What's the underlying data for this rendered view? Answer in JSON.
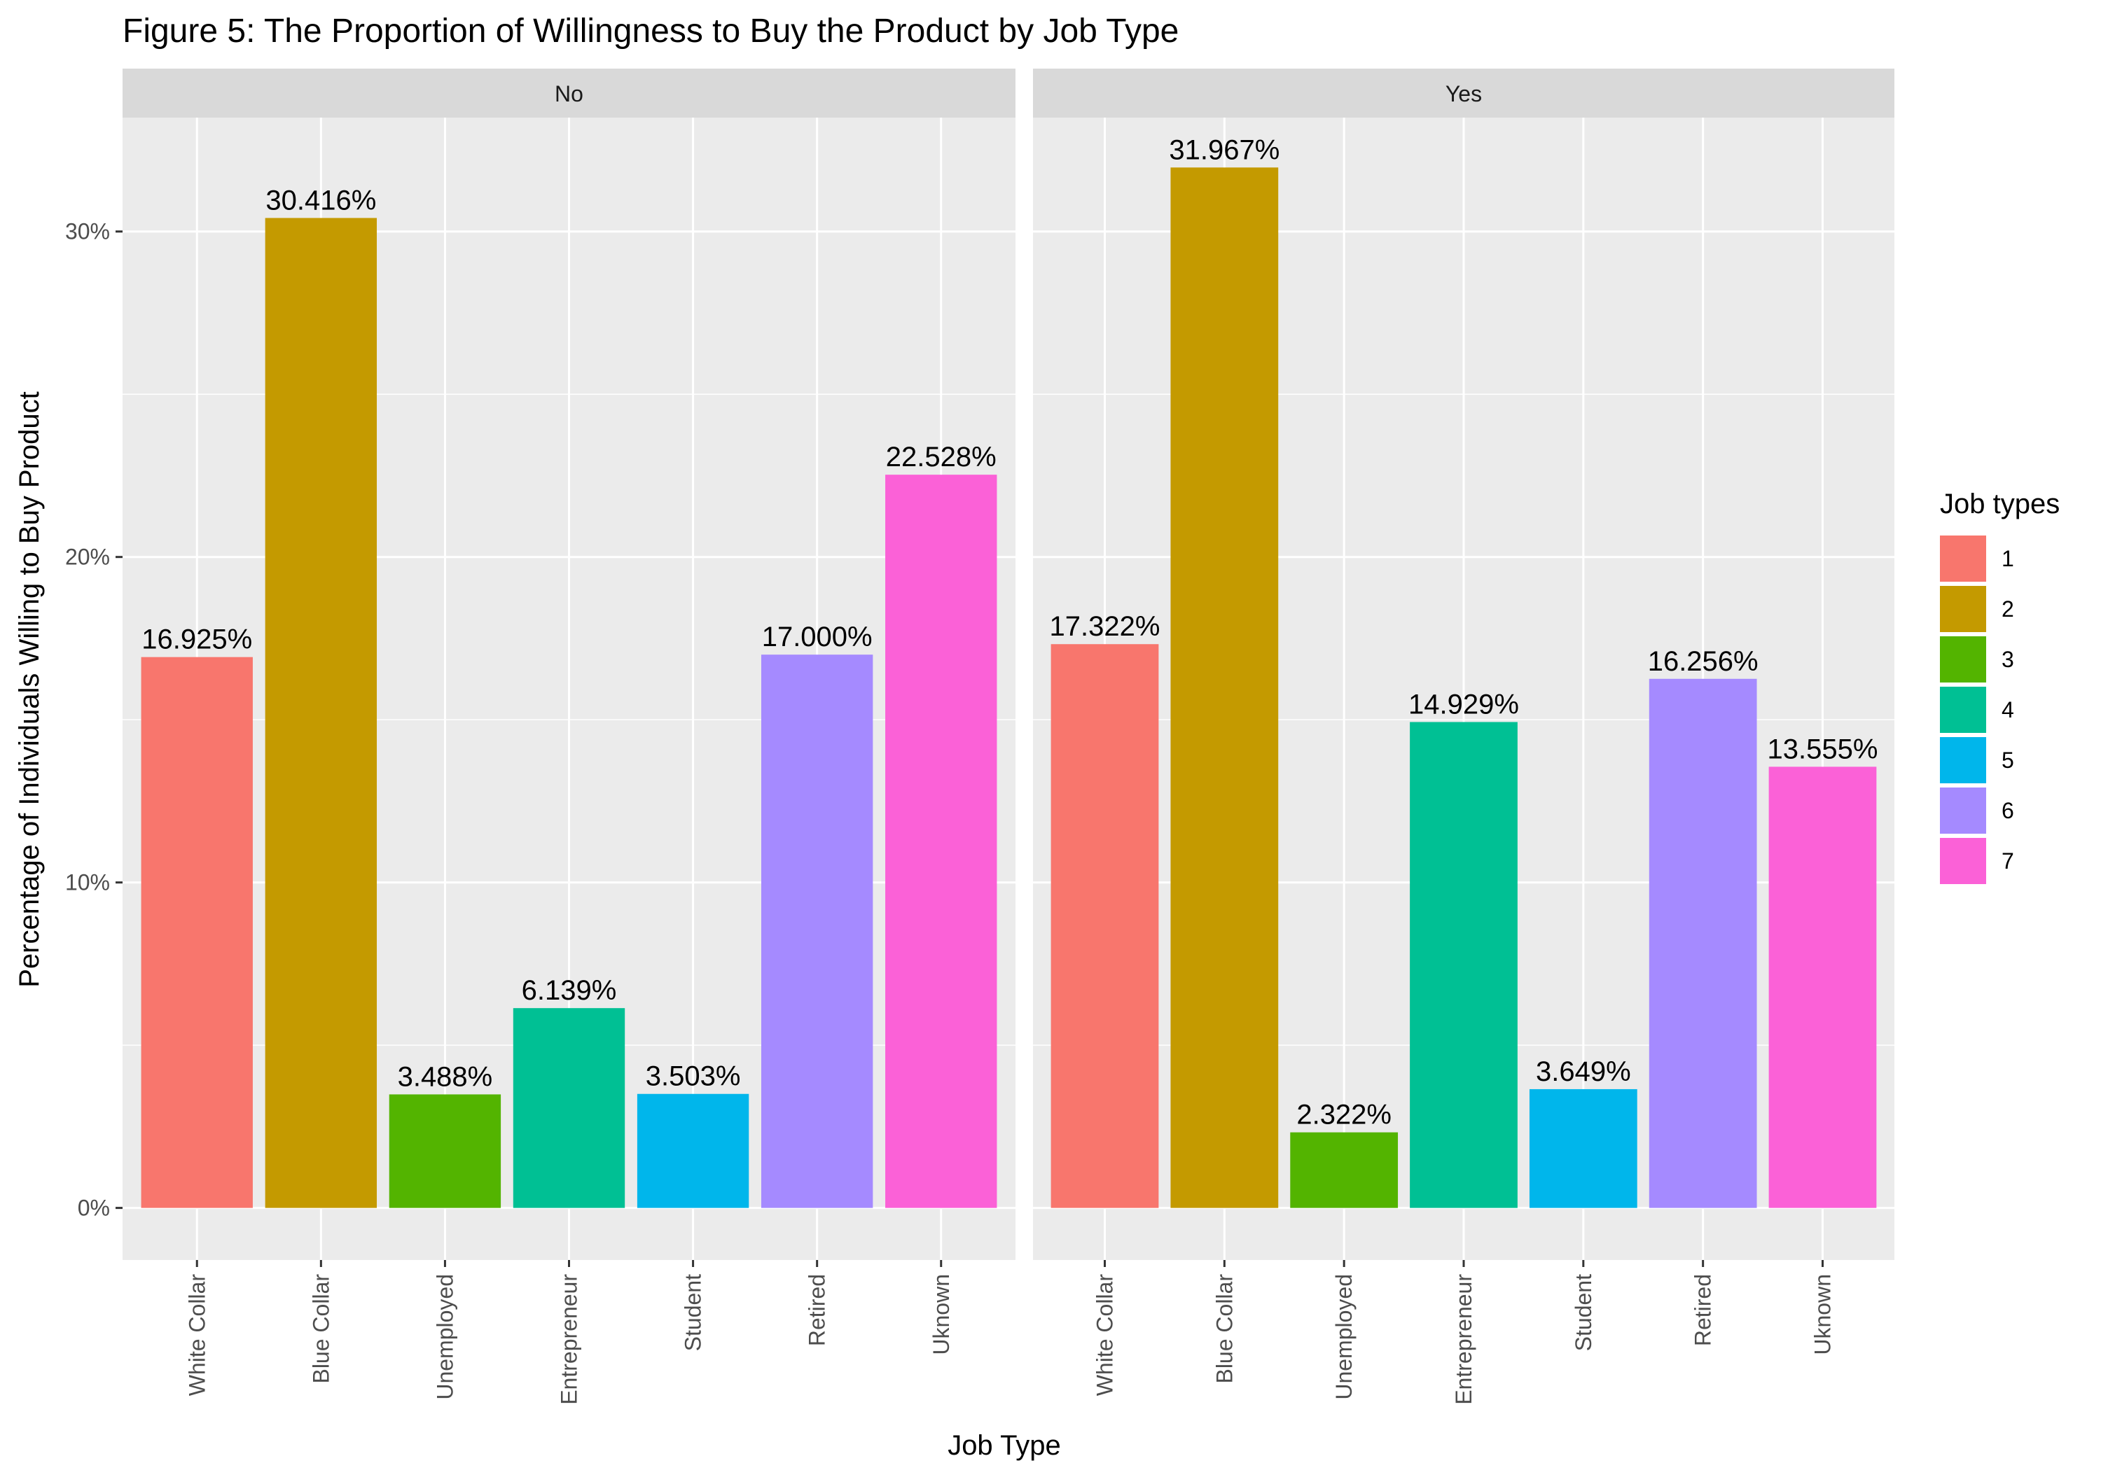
{
  "chart_data": {
    "type": "bar",
    "title": "Figure 5: The Proportion of Willingness to Buy the Product by Job Type",
    "xlabel": "Job Type",
    "ylabel": "Percentage of Individuals Willing to Buy Product",
    "ylim": [
      -1.6,
      33.5
    ],
    "y_ticks": [
      0,
      10,
      20,
      30
    ],
    "y_tick_labels": [
      "0%",
      "10%",
      "20%",
      "30%"
    ],
    "y_minor_ticks": [
      5,
      15,
      25
    ],
    "grid": true,
    "categories": [
      "White Collar",
      "Blue Collar",
      "Unemployed",
      "Entrepreneur",
      "Student",
      "Retired",
      "Uknown"
    ],
    "facets": [
      {
        "label": "No",
        "values": [
          16.925,
          30.416,
          3.488,
          6.139,
          3.503,
          17.0,
          22.528
        ],
        "value_labels": [
          "16.925%",
          "30.416%",
          "3.488%",
          "6.139%",
          "3.503%",
          "17.000%",
          "22.528%"
        ]
      },
      {
        "label": "Yes",
        "values": [
          17.322,
          31.967,
          2.322,
          14.929,
          3.649,
          16.256,
          13.555
        ],
        "value_labels": [
          "17.322%",
          "31.967%",
          "2.322%",
          "14.929%",
          "3.649%",
          "16.256%",
          "13.555%"
        ]
      }
    ],
    "legend": {
      "title": "Job types",
      "position": "right",
      "entries": [
        "1",
        "2",
        "3",
        "4",
        "5",
        "6",
        "7"
      ]
    },
    "colors": [
      "#F8766D",
      "#C49A00",
      "#53B400",
      "#00C094",
      "#00B6EB",
      "#A58AFF",
      "#FB61D7"
    ],
    "panel_background": "#EBEBEB",
    "strip_background": "#D9D9D9"
  }
}
